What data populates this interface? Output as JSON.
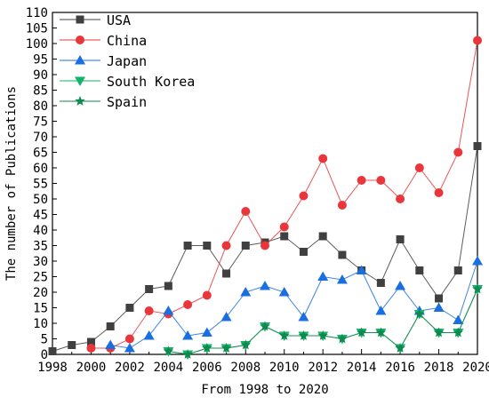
{
  "chart_data": {
    "type": "line",
    "xlabel": "From 1998 to 2020",
    "ylabel": "The number of Publications",
    "xlim": [
      1998,
      2020
    ],
    "ylim": [
      0,
      110
    ],
    "x_ticks": [
      1998,
      2000,
      2002,
      2004,
      2006,
      2008,
      2010,
      2012,
      2014,
      2016,
      2018,
      2020
    ],
    "y_ticks": [
      0,
      5,
      10,
      15,
      20,
      25,
      30,
      35,
      40,
      45,
      50,
      55,
      60,
      65,
      70,
      75,
      80,
      85,
      90,
      95,
      100,
      105,
      110
    ],
    "grid": false,
    "legend_position": "top-left",
    "series": [
      {
        "name": "USA",
        "color": "#404040",
        "marker": "square",
        "x": [
          1998,
          1999,
          2000,
          2001,
          2002,
          2003,
          2004,
          2005,
          2006,
          2007,
          2008,
          2009,
          2010,
          2011,
          2012,
          2013,
          2014,
          2015,
          2016,
          2017,
          2018,
          2019,
          2020
        ],
        "y": [
          1,
          3,
          4,
          9,
          15,
          21,
          22,
          35,
          35,
          26,
          35,
          36,
          38,
          33,
          38,
          32,
          27,
          23,
          37,
          27,
          18,
          27,
          67
        ]
      },
      {
        "name": "China",
        "color": "#e8363b",
        "marker": "circle",
        "x": [
          2000,
          2001,
          2002,
          2003,
          2004,
          2005,
          2006,
          2007,
          2008,
          2009,
          2010,
          2011,
          2012,
          2013,
          2014,
          2015,
          2016,
          2017,
          2018,
          2019,
          2020
        ],
        "y": [
          2,
          2,
          5,
          14,
          13,
          16,
          19,
          35,
          46,
          35,
          41,
          51,
          63,
          48,
          56,
          56,
          50,
          60,
          52,
          65,
          101
        ]
      },
      {
        "name": "Japan",
        "color": "#1a6fe0",
        "marker": "triangle-up",
        "x": [
          2001,
          2002,
          2003,
          2004,
          2005,
          2006,
          2007,
          2008,
          2009,
          2010,
          2011,
          2012,
          2013,
          2014,
          2015,
          2016,
          2017,
          2018,
          2019,
          2020
        ],
        "y": [
          3,
          2,
          6,
          14,
          6,
          7,
          12,
          20,
          22,
          20,
          12,
          25,
          24,
          27,
          14,
          22,
          14,
          15,
          11,
          30
        ]
      },
      {
        "name": "South Korea",
        "color": "#14b36b",
        "marker": "triangle-down",
        "x": [
          2004,
          2005,
          2006,
          2007,
          2008,
          2009,
          2010,
          2011,
          2012,
          2013,
          2014,
          2015,
          2016,
          2017,
          2018,
          2019,
          2020
        ],
        "y": [
          1,
          0,
          2,
          2,
          3,
          9,
          6,
          6,
          6,
          5,
          7,
          7,
          2,
          13,
          7,
          7,
          21
        ]
      },
      {
        "name": "Spain",
        "color": "#0f8a4e",
        "marker": "star",
        "x": [
          2004,
          2005,
          2006,
          2007,
          2008,
          2009,
          2010,
          2011,
          2012,
          2013,
          2014,
          2015,
          2016,
          2017,
          2018,
          2019,
          2020
        ],
        "y": [
          1,
          0,
          2,
          2,
          3,
          9,
          6,
          6,
          6,
          5,
          7,
          7,
          2,
          13,
          7,
          7,
          21
        ]
      }
    ]
  }
}
